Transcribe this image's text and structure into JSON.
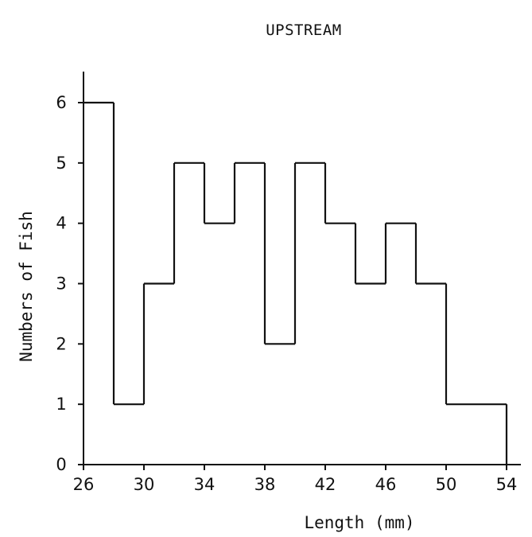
{
  "chart_data": {
    "type": "bar",
    "title": "UPSTREAM",
    "xlabel": "Length (mm)",
    "ylabel": "Numbers of Fish",
    "bin_edges": [
      26,
      28,
      30,
      32,
      34,
      36,
      38,
      40,
      42,
      44,
      46,
      48,
      50,
      52,
      54
    ],
    "values": [
      6,
      1,
      3,
      5,
      4,
      5,
      2,
      5,
      4,
      3,
      4,
      3,
      1,
      1
    ],
    "x_ticks": [
      "26",
      "30",
      "34",
      "38",
      "42",
      "46",
      "50",
      "54"
    ],
    "y_ticks": [
      "0",
      "1",
      "2",
      "3",
      "4",
      "5",
      "6"
    ],
    "xlim": [
      26,
      54
    ],
    "ylim": [
      0,
      6
    ],
    "grid": false,
    "line_color": "#111111"
  }
}
